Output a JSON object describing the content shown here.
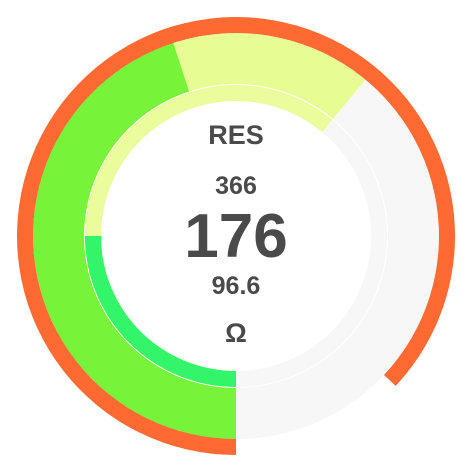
{
  "gauge": {
    "title": "RES",
    "main_value": "176",
    "secondary_value": "366",
    "tertiary_value": "96.6",
    "unit": "Ω",
    "fractions": {
      "outer_ring": 0.87,
      "outer_band_green": 0.45,
      "outer_band_lime": 0.61,
      "inner_band_green": 0.25,
      "inner_band_lime": 0.61
    },
    "colors": {
      "outer_ring": "#ff6a33",
      "outer_band_green": "#77f43a",
      "outer_band_lime": "#e8fc94",
      "inner_band_green": "#33f56a",
      "inner_band_lime": "#eafc9c",
      "track": "#f7f7f7",
      "text": "#4a4a4a"
    }
  }
}
